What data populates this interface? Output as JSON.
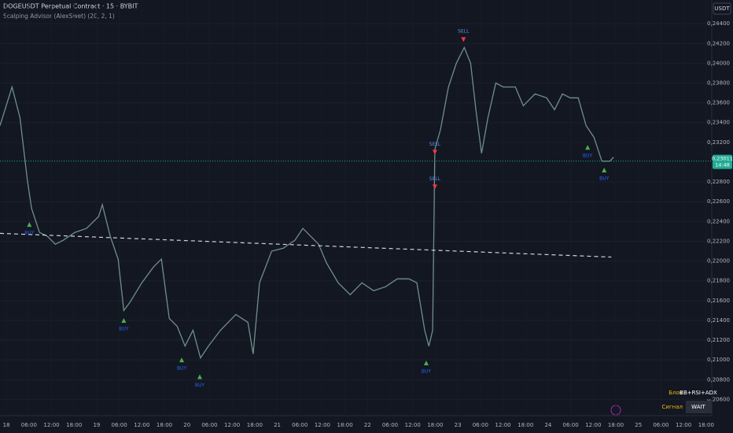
{
  "chart_data": {
    "type": "line",
    "title": "DOGEUSDT Perpetual Contract · 15 · BYBIT",
    "subtitle": "Scalping Advisor (AlexSwet) (20, 2, 1)",
    "currency": "USDT",
    "color": "#6f8f8a",
    "x": [
      -1.7,
      1.5,
      3.6,
      5.6,
      6.7,
      8.8,
      10.9,
      13,
      15.1,
      18.2,
      21.3,
      24.5,
      25.5,
      27.6,
      29.7,
      31.2,
      32.8,
      36,
      39.1,
      41.2,
      43.3,
      45.4,
      47.5,
      49.6,
      51.6,
      53.7,
      56.9,
      61,
      64.2,
      65.6,
      67.3,
      70.5,
      73.6,
      76.7,
      78.8,
      80.9,
      83,
      85.1,
      88.2,
      91.4,
      94.5,
      97.6,
      100.8,
      103.9,
      107,
      109.1,
      111.2,
      112.3,
      113.3,
      113.9,
      115.4,
      117.5,
      119.6,
      121.7,
      123.4,
      124.8,
      126.3,
      128,
      130.1,
      132.1,
      135.3,
      137.4,
      140.5,
      143.6,
      145.7,
      147.8,
      149.9,
      152,
      154.1,
      156.2,
      158.3,
      160.4,
      161.4
    ],
    "values": [
      0.2337,
      0.2376,
      0.2345,
      0.2281,
      0.2253,
      0.2229,
      0.2225,
      0.2217,
      0.2221,
      0.2229,
      0.2233,
      0.2245,
      0.2257,
      0.2225,
      0.2202,
      0.215,
      0.2158,
      0.2178,
      0.2194,
      0.2202,
      0.2142,
      0.2134,
      0.2114,
      0.213,
      0.2102,
      0.2114,
      0.213,
      0.2146,
      0.2138,
      0.2106,
      0.2178,
      0.221,
      0.2213,
      0.2221,
      0.2233,
      0.2225,
      0.2217,
      0.2198,
      0.2178,
      0.2166,
      0.2178,
      0.217,
      0.2174,
      0.2182,
      0.2182,
      0.2178,
      0.213,
      0.2114,
      0.213,
      0.2313,
      0.2333,
      0.2376,
      0.24,
      0.2416,
      0.24,
      0.2353,
      0.2309,
      0.2345,
      0.238,
      0.2376,
      0.2376,
      0.2357,
      0.2369,
      0.2365,
      0.2353,
      0.2369,
      0.2365,
      0.2365,
      0.2337,
      0.2325,
      0.2301,
      0.2301,
      0.2305
    ],
    "xlim": [
      -1.7,
      187.5
    ],
    "ylim": [
      0.2046,
      0.2464
    ],
    "yticks": [
      {
        "value": 0.244,
        "label": "0,24400"
      },
      {
        "value": 0.242,
        "label": "0,24200"
      },
      {
        "value": 0.24,
        "label": "0,24000"
      },
      {
        "value": 0.238,
        "label": "0,23800"
      },
      {
        "value": 0.236,
        "label": "0,23600"
      },
      {
        "value": 0.234,
        "label": "0,23400"
      },
      {
        "value": 0.232,
        "label": "0,23200"
      },
      {
        "value": 0.228,
        "label": "0,22800"
      },
      {
        "value": 0.226,
        "label": "0,22600"
      },
      {
        "value": 0.224,
        "label": "0,22400"
      },
      {
        "value": 0.222,
        "label": "0,22200"
      },
      {
        "value": 0.22,
        "label": "0,22000"
      },
      {
        "value": 0.218,
        "label": "0,21800"
      },
      {
        "value": 0.216,
        "label": "0,21600"
      },
      {
        "value": 0.214,
        "label": "0,21400"
      },
      {
        "value": 0.212,
        "label": "0,21200"
      },
      {
        "value": 0.21,
        "label": "0,21000"
      },
      {
        "value": 0.208,
        "label": "0,20800"
      },
      {
        "value": 0.206,
        "label": "0,20600"
      }
    ],
    "xticks": [
      {
        "value": 0,
        "label": "18"
      },
      {
        "value": 6,
        "label": "06:00"
      },
      {
        "value": 12,
        "label": "12:00"
      },
      {
        "value": 18,
        "label": "18:00"
      },
      {
        "value": 24,
        "label": "19"
      },
      {
        "value": 30,
        "label": "06:00"
      },
      {
        "value": 36,
        "label": "12:00"
      },
      {
        "value": 42,
        "label": "18:00"
      },
      {
        "value": 48,
        "label": "20"
      },
      {
        "value": 54,
        "label": "06:00"
      },
      {
        "value": 60,
        "label": "12:00"
      },
      {
        "value": 66,
        "label": "18:00"
      },
      {
        "value": 72,
        "label": "21"
      },
      {
        "value": 78,
        "label": "06:00"
      },
      {
        "value": 84,
        "label": "12:00"
      },
      {
        "value": 90,
        "label": "18:00"
      },
      {
        "value": 96,
        "label": "22"
      },
      {
        "value": 102,
        "label": "06:00"
      },
      {
        "value": 108,
        "label": "12:00"
      },
      {
        "value": 114,
        "label": "18:00"
      },
      {
        "value": 120,
        "label": "23"
      },
      {
        "value": 126,
        "label": "06:00"
      },
      {
        "value": 132,
        "label": "12:00"
      },
      {
        "value": 138,
        "label": "18:00"
      },
      {
        "value": 144,
        "label": "24"
      },
      {
        "value": 150,
        "label": "06:00"
      },
      {
        "value": 156,
        "label": "12:00"
      },
      {
        "value": 162,
        "label": "18:00"
      },
      {
        "value": 168,
        "label": "25"
      },
      {
        "value": 174,
        "label": "06:00"
      },
      {
        "value": 180,
        "label": "12:00"
      },
      {
        "value": 186,
        "label": "18:00"
      }
    ],
    "last_price": {
      "value": 0.23011,
      "label": "0,23011"
    },
    "countdown": "14:48",
    "trendline": {
      "x": [
        -1.7,
        160.8
      ],
      "values": [
        0.2228,
        0.2204
      ]
    },
    "signals": [
      {
        "label": "BUY",
        "x": 6.1,
        "price": 0.2237
      },
      {
        "label": "BUY",
        "x": 31.2,
        "price": 0.214
      },
      {
        "label": "BUY",
        "x": 46.6,
        "price": 0.21
      },
      {
        "label": "BUY",
        "x": 51.4,
        "price": 0.2083
      },
      {
        "label": "BUY",
        "x": 111.6,
        "price": 0.2097
      },
      {
        "label": "BUY",
        "x": 154.5,
        "price": 0.2315
      },
      {
        "label": "BUY",
        "x": 158.9,
        "price": 0.2292
      },
      {
        "label": "SELL",
        "x": 121.5,
        "price": 0.2424
      },
      {
        "label": "SELL",
        "x": 113.9,
        "price": 0.231
      },
      {
        "label": "SELL",
        "x": 113.9,
        "price": 0.2275
      }
    ],
    "info_table": {
      "rows": [
        [
          "Блок",
          "BB+RSI+ADX"
        ],
        [
          "Сигнал",
          "WAIT"
        ]
      ]
    }
  }
}
